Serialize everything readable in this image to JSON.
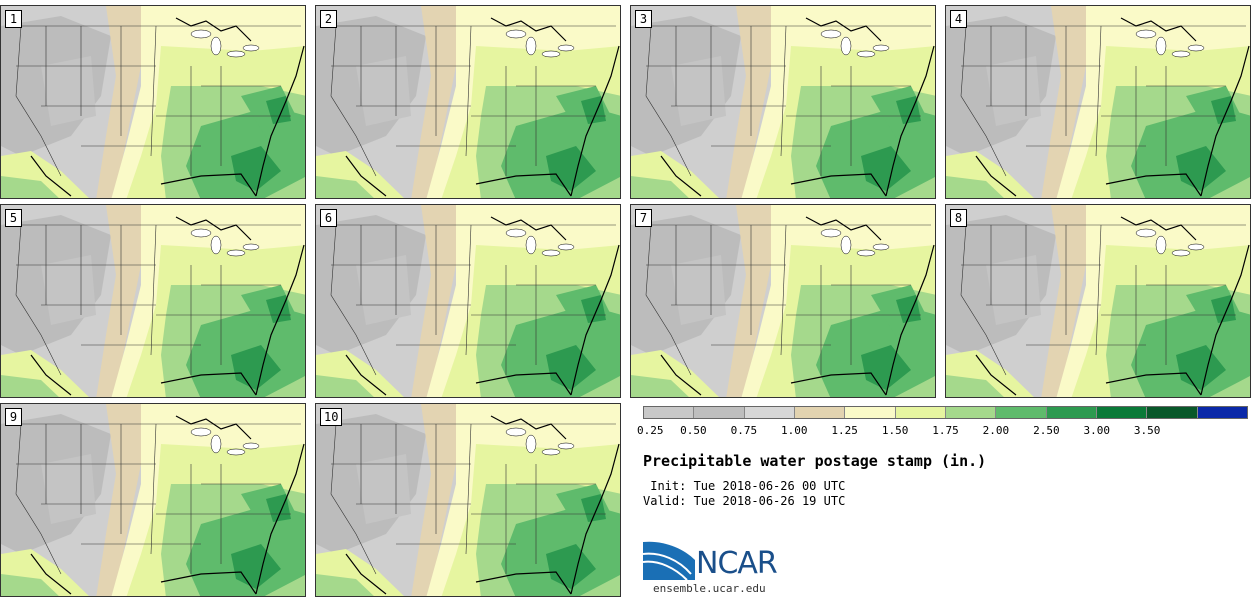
{
  "panels": [
    {
      "label": "1"
    },
    {
      "label": "2"
    },
    {
      "label": "3"
    },
    {
      "label": "4"
    },
    {
      "label": "5"
    },
    {
      "label": "6"
    },
    {
      "label": "7"
    },
    {
      "label": "8"
    },
    {
      "label": "9"
    },
    {
      "label": "10"
    }
  ],
  "colorbar": {
    "colors": [
      "#c8c8c8",
      "#bebebe",
      "#d7d7d7",
      "#e2d3b0",
      "#fafac8",
      "#e6f5a0",
      "#a5d98c",
      "#5fbb6c",
      "#2d9a50",
      "#0a7a38",
      "#08582a",
      "#0a28a8"
    ],
    "ticks": [
      "0.25",
      "0.50",
      "0.75",
      "1.00",
      "1.25",
      "1.50",
      "1.75",
      "2.00",
      "2.50",
      "3.00",
      "3.50"
    ]
  },
  "title": "Precipitable water postage stamp (in.)",
  "init": " Init: Tue 2018-06-26 00 UTC",
  "valid": "Valid: Tue 2018-06-26 19 UTC",
  "logo": {
    "text": "NCAR",
    "url": "ensemble.ucar.edu"
  }
}
